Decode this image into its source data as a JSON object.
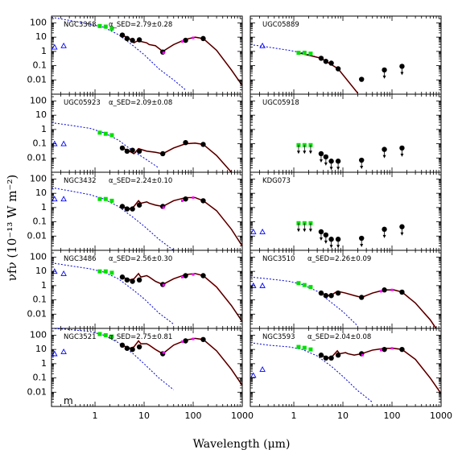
{
  "figure": {
    "xlabel": "Wavelength (μm)",
    "ylabel": "νfν (10⁻¹³ W m⁻²)",
    "x_ticks": [
      "1",
      "10",
      "100",
      "1000"
    ],
    "y_ticks": [
      "100",
      "10",
      "1",
      "0.1",
      "0.01"
    ]
  },
  "colors": {
    "data": "#000000",
    "optical": "#00e000",
    "galex": "#0000ff",
    "iras": "#ff00ff",
    "stellar_model": "#0000dd",
    "dust_model": "#cc0000",
    "total_model": "#000000"
  },
  "chart_data": [
    {
      "type": "scatter",
      "panel": "NGC3368",
      "title": "NGC3368",
      "alpha": "α_SED=2.79±0.28",
      "xlim": [
        0.13,
        1000
      ],
      "ylim": [
        0.001,
        300
      ],
      "log_x": true,
      "log_y": true,
      "series": [
        {
          "kind": "galex",
          "x": [
            0.15,
            0.23
          ],
          "y": [
            2.0,
            2.5
          ]
        },
        {
          "kind": "optical",
          "x": [
            1.25,
            1.65,
            2.2
          ],
          "y": [
            60,
            55,
            40
          ]
        },
        {
          "kind": "data",
          "x": [
            3.6,
            4.5,
            5.8,
            8.0,
            24,
            70,
            160
          ],
          "y": [
            14,
            8,
            6,
            6.5,
            0.9,
            6,
            8
          ]
        },
        {
          "kind": "iras",
          "x": [
            25,
            60,
            100
          ],
          "y": [
            0.8,
            5,
            9
          ]
        }
      ],
      "curves": {
        "stellar": {
          "x": [
            0.13,
            0.3,
            0.8,
            1.5,
            3,
            6,
            10,
            20,
            40,
            70
          ],
          "y": [
            250,
            150,
            80,
            50,
            15,
            2.5,
            0.6,
            0.06,
            0.01,
            0.002
          ]
        },
        "total": {
          "x": [
            3.6,
            5,
            6.2,
            7.7,
            8.6,
            11.3,
            12.7,
            17,
            24,
            40,
            70,
            110,
            160,
            300,
            600,
            1000
          ],
          "y": [
            14,
            8,
            4,
            6,
            5,
            4,
            3,
            2.5,
            1,
            3,
            7,
            10,
            8,
            1.2,
            0.05,
            0.004
          ]
        }
      }
    },
    {
      "type": "scatter",
      "panel": "UGC05889",
      "title": "UGC05889",
      "alpha": "",
      "xlim": [
        0.13,
        1000
      ],
      "ylim": [
        0.001,
        300
      ],
      "log_x": true,
      "log_y": true,
      "series": [
        {
          "kind": "galex",
          "x": [
            0.23
          ],
          "y": [
            2.5
          ]
        },
        {
          "kind": "optical",
          "x": [
            1.25,
            1.65,
            2.2
          ],
          "y": [
            0.8,
            0.8,
            0.7
          ]
        },
        {
          "kind": "data",
          "x": [
            3.6,
            4.5,
            5.8,
            8.0,
            24
          ],
          "y": [
            0.33,
            0.2,
            0.15,
            0.06,
            0.011
          ]
        },
        {
          "kind": "upper_limit",
          "x": [
            70,
            160
          ],
          "y": [
            0.05,
            0.09
          ]
        }
      ],
      "curves": {
        "stellar": {
          "x": [
            0.13,
            0.3,
            0.8,
            1.5,
            3
          ],
          "y": [
            3,
            2,
            1.2,
            0.8,
            0.4
          ]
        },
        "total": {
          "x": [
            1.25,
            3.6,
            8,
            20
          ],
          "y": [
            0.8,
            0.33,
            0.06,
            0.0012
          ]
        }
      }
    },
    {
      "type": "scatter",
      "panel": "UGC05923",
      "title": "UGC05923",
      "alpha": "α_SED=2.09±0.08",
      "xlim": [
        0.13,
        1000
      ],
      "ylim": [
        0.001,
        300
      ],
      "log_x": true,
      "log_y": true,
      "series": [
        {
          "kind": "galex",
          "x": [
            0.15,
            0.23
          ],
          "y": [
            0.1,
            0.1
          ]
        },
        {
          "kind": "optical",
          "x": [
            1.25,
            1.65,
            2.2
          ],
          "y": [
            0.6,
            0.5,
            0.4
          ]
        },
        {
          "kind": "data",
          "x": [
            3.6,
            4.5,
            5.8,
            8.0,
            24,
            70,
            160
          ],
          "y": [
            0.05,
            0.03,
            0.035,
            0.03,
            0.02,
            0.12,
            0.09
          ]
        }
      ],
      "curves": {
        "stellar": {
          "x": [
            0.13,
            0.3,
            0.8,
            1.5,
            3,
            6,
            10,
            20
          ],
          "y": [
            3,
            2,
            1.2,
            0.6,
            0.18,
            0.03,
            0.01,
            0.002
          ]
        },
        "total": {
          "x": [
            3.6,
            5,
            6.2,
            7.7,
            11.3,
            17,
            24,
            40,
            70,
            110,
            160,
            300,
            600,
            1000
          ],
          "y": [
            0.05,
            0.03,
            0.02,
            0.045,
            0.03,
            0.025,
            0.02,
            0.05,
            0.1,
            0.11,
            0.09,
            0.015,
            0.001,
            0.0001
          ]
        }
      }
    },
    {
      "type": "scatter",
      "panel": "UGC05918",
      "title": "UGC05918",
      "alpha": "",
      "xlim": [
        0.13,
        1000
      ],
      "ylim": [
        0.001,
        300
      ],
      "log_x": true,
      "log_y": true,
      "series": [
        {
          "kind": "upper_limit_optical",
          "x": [
            1.25,
            1.65,
            2.2
          ],
          "y": [
            0.08,
            0.08,
            0.08
          ]
        },
        {
          "kind": "upper_limit",
          "x": [
            3.6,
            4.5,
            5.8,
            8.0,
            24,
            70,
            160
          ],
          "y": [
            0.02,
            0.012,
            0.006,
            0.006,
            0.007,
            0.04,
            0.05
          ]
        }
      ],
      "curves": {}
    },
    {
      "type": "scatter",
      "panel": "NGC3432",
      "title": "NGC3432",
      "alpha": "α_SED=2.24±0.10",
      "xlim": [
        0.13,
        1000
      ],
      "ylim": [
        0.001,
        300
      ],
      "log_x": true,
      "log_y": true,
      "series": [
        {
          "kind": "galex",
          "x": [
            0.15,
            0.23
          ],
          "y": [
            4,
            4
          ]
        },
        {
          "kind": "optical",
          "x": [
            1.25,
            1.65,
            2.2
          ],
          "y": [
            4,
            4,
            3
          ]
        },
        {
          "kind": "data",
          "x": [
            3.6,
            4.5,
            5.8,
            8.0,
            24,
            70,
            160
          ],
          "y": [
            1.2,
            0.8,
            0.8,
            1.5,
            1.2,
            4,
            3
          ]
        },
        {
          "kind": "iras",
          "x": [
            25,
            60,
            100
          ],
          "y": [
            1,
            3,
            5
          ]
        }
      ],
      "curves": {
        "stellar": {
          "x": [
            0.13,
            0.3,
            0.8,
            1.5,
            3,
            6,
            10,
            20,
            40
          ],
          "y": [
            25,
            15,
            8,
            4,
            1.2,
            0.2,
            0.05,
            0.006,
            0.001
          ]
        },
        "total": {
          "x": [
            3.6,
            5,
            6.2,
            7.7,
            8.6,
            11.3,
            12.7,
            17,
            24,
            40,
            70,
            110,
            160,
            300,
            600,
            1000
          ],
          "y": [
            1.2,
            0.8,
            1.2,
            3,
            2,
            2.5,
            2,
            1.5,
            1.2,
            3,
            5,
            5,
            3,
            0.6,
            0.03,
            0.002
          ]
        }
      }
    },
    {
      "type": "scatter",
      "panel": "KDG073",
      "title": "KDG073",
      "alpha": "",
      "xlim": [
        0.13,
        1000
      ],
      "ylim": [
        0.001,
        300
      ],
      "log_x": true,
      "log_y": true,
      "series": [
        {
          "kind": "galex",
          "x": [
            0.15,
            0.23
          ],
          "y": [
            0.02,
            0.02
          ]
        },
        {
          "kind": "upper_limit_optical",
          "x": [
            1.25,
            1.65,
            2.2
          ],
          "y": [
            0.08,
            0.08,
            0.08
          ]
        },
        {
          "kind": "upper_limit",
          "x": [
            3.6,
            4.5,
            5.8,
            8.0,
            24,
            70,
            160
          ],
          "y": [
            0.02,
            0.012,
            0.006,
            0.006,
            0.007,
            0.03,
            0.045
          ]
        }
      ],
      "curves": {}
    },
    {
      "type": "scatter",
      "panel": "NGC3486",
      "title": "NGC3486",
      "alpha": "α_SED=2.56±0.30",
      "xlim": [
        0.13,
        1000
      ],
      "ylim": [
        0.001,
        300
      ],
      "log_x": true,
      "log_y": true,
      "series": [
        {
          "kind": "galex",
          "x": [
            0.15,
            0.23
          ],
          "y": [
            10,
            7
          ]
        },
        {
          "kind": "optical",
          "x": [
            1.25,
            1.65,
            2.2
          ],
          "y": [
            10,
            10,
            8
          ]
        },
        {
          "kind": "data",
          "x": [
            3.6,
            4.5,
            5.8,
            8.0,
            24,
            70,
            160
          ],
          "y": [
            4,
            2.5,
            2,
            2.5,
            1.2,
            5,
            5
          ]
        },
        {
          "kind": "iras",
          "x": [
            25,
            60,
            100
          ],
          "y": [
            1.1,
            4,
            6
          ]
        }
      ],
      "curves": {
        "stellar": {
          "x": [
            0.13,
            0.3,
            0.8,
            1.5,
            3,
            6,
            10,
            20,
            40
          ],
          "y": [
            40,
            25,
            15,
            9,
            3,
            0.5,
            0.12,
            0.012,
            0.002
          ]
        },
        "total": {
          "x": [
            3.6,
            5,
            6.2,
            7.7,
            8.6,
            11.3,
            12.7,
            17,
            24,
            40,
            70,
            110,
            160,
            300,
            600,
            1000
          ],
          "y": [
            4,
            2.5,
            3,
            7,
            4,
            5,
            4,
            2,
            1.2,
            3,
            6,
            7,
            5,
            0.8,
            0.04,
            0.003
          ]
        }
      }
    },
    {
      "type": "scatter",
      "panel": "NGC3510",
      "title": "NGC3510",
      "alpha": "α_SED=2.26±0.09",
      "xlim": [
        0.13,
        1000
      ],
      "ylim": [
        0.001,
        300
      ],
      "log_x": true,
      "log_y": true,
      "series": [
        {
          "kind": "galex",
          "x": [
            0.15,
            0.23
          ],
          "y": [
            1,
            1
          ]
        },
        {
          "kind": "optical",
          "x": [
            1.25,
            1.65,
            2.2
          ],
          "y": [
            1.5,
            1.1,
            0.8
          ]
        },
        {
          "kind": "data",
          "x": [
            3.6,
            4.5,
            5.8,
            8.0,
            24,
            70,
            160
          ],
          "y": [
            0.3,
            0.2,
            0.2,
            0.3,
            0.15,
            0.5,
            0.35
          ]
        },
        {
          "kind": "iras",
          "x": [
            60,
            100
          ],
          "y": [
            0.4,
            0.5
          ]
        }
      ],
      "curves": {
        "stellar": {
          "x": [
            0.13,
            0.3,
            0.8,
            1.5,
            3,
            6,
            10,
            20
          ],
          "y": [
            4,
            3,
            2,
            1.2,
            0.4,
            0.06,
            0.015,
            0.0015
          ]
        },
        "total": {
          "x": [
            3.6,
            5,
            6.2,
            7.7,
            11.3,
            17,
            24,
            40,
            70,
            110,
            160,
            300,
            600,
            1000
          ],
          "y": [
            0.3,
            0.2,
            0.25,
            0.4,
            0.3,
            0.2,
            0.15,
            0.3,
            0.5,
            0.5,
            0.35,
            0.06,
            0.004,
            0.0003
          ]
        }
      }
    },
    {
      "type": "scatter",
      "panel": "NGC3521",
      "title": "NGC3521",
      "alpha": "α_SED=2.75±0.81",
      "xlim": [
        0.13,
        1000
      ],
      "ylim": [
        0.001,
        300
      ],
      "log_x": true,
      "log_y": true,
      "series": [
        {
          "kind": "galex",
          "x": [
            0.15,
            0.23
          ],
          "y": [
            5,
            7
          ]
        },
        {
          "kind": "optical",
          "x": [
            1.25,
            1.65,
            2.2
          ],
          "y": [
            120,
            100,
            80
          ]
        },
        {
          "kind": "data",
          "x": [
            3.6,
            4.5,
            5.8,
            8.0,
            24,
            70,
            160
          ],
          "y": [
            20,
            12,
            10,
            15,
            5,
            40,
            50
          ]
        },
        {
          "kind": "iras",
          "x": [
            25,
            60,
            100
          ],
          "y": [
            6,
            35,
            55
          ]
        }
      ],
      "curves": {
        "stellar": {
          "x": [
            0.13,
            0.3,
            0.8,
            1.5,
            3,
            6,
            10,
            20,
            40
          ],
          "y": [
            300,
            250,
            180,
            100,
            30,
            5,
            1,
            0.1,
            0.015
          ]
        },
        "total": {
          "x": [
            3.6,
            5,
            6.2,
            7.7,
            8.6,
            11.3,
            12.7,
            17,
            24,
            40,
            70,
            110,
            160,
            300,
            600,
            1000
          ],
          "y": [
            20,
            12,
            15,
            40,
            25,
            25,
            20,
            10,
            5,
            20,
            45,
            60,
            50,
            8,
            0.4,
            0.03
          ]
        }
      }
    },
    {
      "type": "scatter",
      "panel": "NGC3593",
      "title": "NGC3593",
      "alpha": "α_SED=2.04±0.08",
      "xlim": [
        0.13,
        1000
      ],
      "ylim": [
        0.001,
        300
      ],
      "log_x": true,
      "log_y": true,
      "series": [
        {
          "kind": "galex",
          "x": [
            0.15,
            0.23
          ],
          "y": [
            0.15,
            0.4
          ]
        },
        {
          "kind": "optical",
          "x": [
            1.25,
            1.65,
            2.2
          ],
          "y": [
            15,
            13,
            10
          ]
        },
        {
          "kind": "data",
          "x": [
            3.6,
            4.5,
            5.8,
            8.0,
            24,
            70,
            160
          ],
          "y": [
            4,
            2.5,
            2.5,
            4,
            5,
            10,
            10
          ]
        },
        {
          "kind": "iras",
          "x": [
            25,
            60,
            100
          ],
          "y": [
            4,
            9,
            12
          ]
        }
      ],
      "curves": {
        "stellar": {
          "x": [
            0.13,
            0.3,
            0.8,
            1.5,
            3,
            6,
            10,
            20,
            40
          ],
          "y": [
            30,
            20,
            15,
            10,
            3.5,
            0.6,
            0.13,
            0.013,
            0.002
          ]
        },
        "total": {
          "x": [
            3.6,
            5,
            6.2,
            7.7,
            8.6,
            11.3,
            12.7,
            17,
            24,
            40,
            70,
            110,
            160,
            300,
            600,
            1000
          ],
          "y": [
            4,
            2.5,
            3.5,
            8,
            5,
            6,
            5,
            4,
            5,
            9,
            12,
            12,
            10,
            2,
            0.1,
            0.008
          ]
        }
      }
    }
  ],
  "corner_mark": "m"
}
